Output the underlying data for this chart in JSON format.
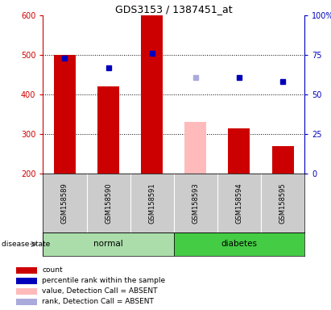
{
  "title": "GDS3153 / 1387451_at",
  "samples": [
    "GSM158589",
    "GSM158590",
    "GSM158591",
    "GSM158593",
    "GSM158594",
    "GSM158595"
  ],
  "bar_values": [
    500,
    420,
    600,
    330,
    315,
    270
  ],
  "bar_colors": [
    "#cc0000",
    "#cc0000",
    "#cc0000",
    "#ffbbbb",
    "#cc0000",
    "#cc0000"
  ],
  "rank_pct": [
    73,
    67,
    76,
    61,
    61,
    58
  ],
  "rank_colors": [
    "#0000bb",
    "#0000bb",
    "#0000bb",
    "#aaaadd",
    "#0000bb",
    "#0000bb"
  ],
  "ylim_left": [
    200,
    600
  ],
  "ylim_right": [
    0,
    100
  ],
  "yticks_left": [
    200,
    300,
    400,
    500,
    600
  ],
  "yticks_right": [
    0,
    25,
    50,
    75,
    100
  ],
  "ytick_labels_right": [
    "0",
    "25",
    "50",
    "75",
    "100%"
  ],
  "bar_width": 0.5,
  "bg_color_sample": "#cccccc",
  "normal_color": "#aaddaa",
  "diabetes_color": "#44cc44",
  "legend_items": [
    {
      "label": "count",
      "color": "#cc0000"
    },
    {
      "label": "percentile rank within the sample",
      "color": "#0000bb"
    },
    {
      "label": "value, Detection Call = ABSENT",
      "color": "#ffbbbb"
    },
    {
      "label": "rank, Detection Call = ABSENT",
      "color": "#aaaadd"
    }
  ]
}
